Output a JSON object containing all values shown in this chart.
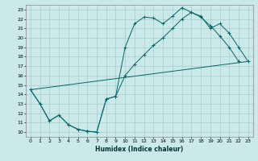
{
  "xlabel": "Humidex (Indice chaleur)",
  "ylabel": "",
  "background_color": "#cce9e9",
  "grid_color": "#a8cccc",
  "line_color": "#006666",
  "xlim": [
    -0.5,
    23.5
  ],
  "ylim": [
    9.5,
    23.5
  ],
  "xticks": [
    0,
    1,
    2,
    3,
    4,
    5,
    6,
    7,
    8,
    9,
    10,
    11,
    12,
    13,
    14,
    15,
    16,
    17,
    18,
    19,
    20,
    21,
    22,
    23
  ],
  "yticks": [
    10,
    11,
    12,
    13,
    14,
    15,
    16,
    17,
    18,
    19,
    20,
    21,
    22,
    23
  ],
  "line1_x": [
    0,
    1,
    2,
    3,
    4,
    5,
    6,
    7,
    8,
    9,
    10,
    11,
    12,
    13,
    14,
    15,
    16,
    17,
    18,
    19,
    20,
    21,
    22
  ],
  "line1_y": [
    14.5,
    13.0,
    11.2,
    11.8,
    10.8,
    10.3,
    10.1,
    10.0,
    13.5,
    13.8,
    19.0,
    21.5,
    22.2,
    22.1,
    21.5,
    22.3,
    23.2,
    22.7,
    22.2,
    21.3,
    20.2,
    19.0,
    17.5
  ],
  "line2_x": [
    0,
    1,
    2,
    3,
    4,
    5,
    6,
    7,
    8,
    9,
    10,
    11,
    12,
    13,
    14,
    15,
    16,
    17,
    18,
    19,
    20,
    21,
    22,
    23
  ],
  "line2_y": [
    14.5,
    13.0,
    11.2,
    11.8,
    10.8,
    10.3,
    10.1,
    10.0,
    13.5,
    13.8,
    16.0,
    17.2,
    18.2,
    19.2,
    20.0,
    21.0,
    22.0,
    22.7,
    22.3,
    21.0,
    21.5,
    20.5,
    19.0,
    17.5
  ],
  "line3_x": [
    0,
    23
  ],
  "line3_y": [
    14.5,
    17.5
  ]
}
